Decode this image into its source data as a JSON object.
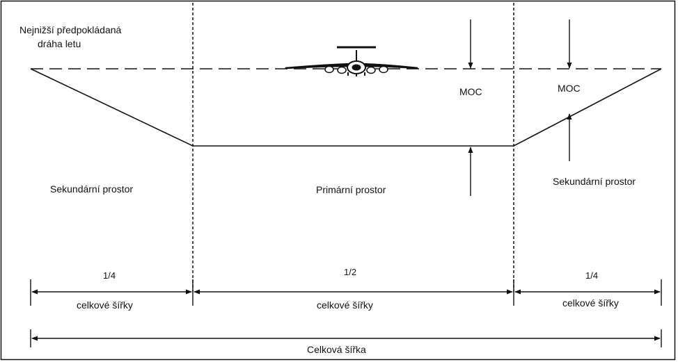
{
  "flight_path_label": {
    "line1": "Nejnižší předpokládaná",
    "line2": "dráha letu"
  },
  "moc_center": "MOC",
  "moc_right": "MOC",
  "areas": {
    "secondary_left": "Sekundární prostor",
    "primary": "Primární prostor",
    "secondary_right": "Sekundární prostor"
  },
  "dimensions": {
    "left_fraction": "1/4",
    "center_fraction": "1/2",
    "right_fraction": "1/4",
    "left_caption": "celkové šířky",
    "center_caption": "celkové šířky",
    "right_caption": "celkové šířky",
    "total": "Celková šířka"
  },
  "colors": {
    "ink": "#111111",
    "background": "#ffffff"
  },
  "icons": {
    "aircraft": "aircraft-front-view-icon"
  }
}
